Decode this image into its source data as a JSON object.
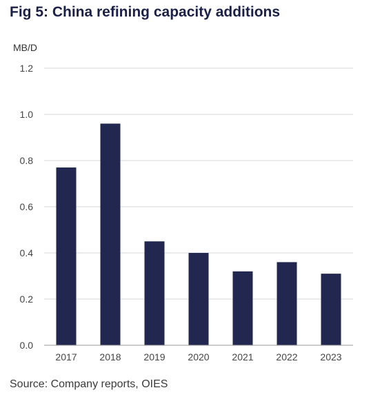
{
  "title": "Fig 5: China refining capacity additions",
  "source": "Source: Company reports, OIES",
  "colors": {
    "bar": "#22274f",
    "title": "#1b2048",
    "grid": "#d7d7d7",
    "axis": "#9a9a9a"
  },
  "chart_data": {
    "type": "bar",
    "title": "Fig 5: China refining capacity additions",
    "xlabel": "",
    "ylabel": "",
    "unit_label": "MB/D",
    "categories": [
      "2017",
      "2018",
      "2019",
      "2020",
      "2021",
      "2022",
      "2023"
    ],
    "values": [
      0.77,
      0.96,
      0.45,
      0.4,
      0.32,
      0.36,
      0.31
    ],
    "ylim": [
      0,
      1.2
    ],
    "yticks": [
      "0.0",
      "0.2",
      "0.4",
      "0.6",
      "0.8",
      "1.0",
      "1.2"
    ],
    "grid": true,
    "legend": "none"
  }
}
